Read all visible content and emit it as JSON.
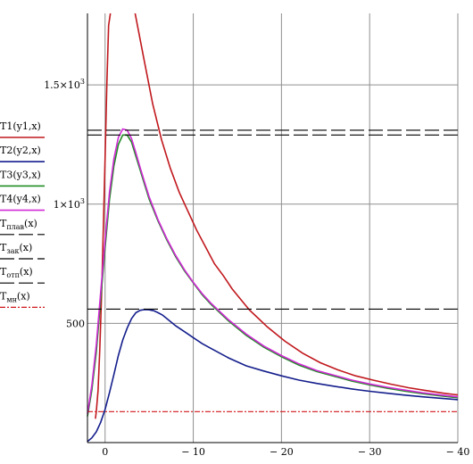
{
  "chart_data": {
    "type": "line",
    "title": "",
    "xlabel": "",
    "ylabel": "",
    "xlim": [
      2,
      -40
    ],
    "ylim": [
      0,
      1800
    ],
    "grid": true,
    "x_ticks": [
      {
        "value": 0,
        "label": "0"
      },
      {
        "value": -10,
        "label": "− 10"
      },
      {
        "value": -20,
        "label": "− 20"
      },
      {
        "value": -30,
        "label": "− 30"
      },
      {
        "value": -40,
        "label": "− 40"
      }
    ],
    "y_ticks": [
      {
        "value": 500,
        "base": "500",
        "exp": ""
      },
      {
        "value": 1000,
        "base": "1×10",
        "exp": "3"
      },
      {
        "value": 1500,
        "base": "1.5×10",
        "exp": "3"
      }
    ],
    "series": [
      {
        "name": "T1(y1,x)",
        "color": "#c0181d",
        "style": "solid",
        "x": [
          1.1,
          1.0,
          0.8,
          0.6,
          0.4,
          0.2,
          0.0,
          -0.2,
          -0.4,
          -0.6,
          -0.8,
          -1.0,
          -1.2,
          -1.4,
          -2.4,
          -3.4,
          -4.4,
          -5.4,
          -6.4,
          -7.4,
          -8.4,
          -9.4,
          -10.4,
          -11.4,
          -12.4,
          -13.4,
          -14.4,
          -15.4,
          -16.4,
          -17.4,
          -18.4,
          -20.4,
          -22.4,
          -24.4,
          -26.4,
          -28.4,
          -30.4,
          -32.4,
          -34.4,
          -36.4,
          -38.4,
          -40.0
        ],
        "values": [
          100,
          130,
          220,
          390,
          620,
          900,
          1200,
          1500,
          1750,
          1800,
          null,
          null,
          null,
          null,
          null,
          1800,
          1610,
          1420,
          1270,
          1150,
          1050,
          970,
          890,
          820,
          750,
          700,
          645,
          600,
          555,
          520,
          485,
          425,
          375,
          335,
          305,
          280,
          262,
          245,
          230,
          218,
          207,
          200
        ]
      },
      {
        "name": "T2(y2,x)",
        "color": "#141e8c",
        "style": "solid",
        "x": [
          2.0,
          1.5,
          1.0,
          0.5,
          0.0,
          -0.5,
          -1.0,
          -1.5,
          -2.0,
          -2.5,
          -3.0,
          -3.5,
          -4.0,
          -4.5,
          -5.0,
          -5.5,
          -6.0,
          -6.5,
          -7.0,
          -8.0,
          -9.0,
          -10.0,
          -11.0,
          -12.0,
          -14.0,
          -16.0,
          -18.0,
          -20.0,
          -22.0,
          -24.0,
          -26.0,
          -28.0,
          -30.0,
          -32.0,
          -34.0,
          -36.0,
          -38.0,
          -40.0
        ],
        "values": [
          5,
          20,
          45,
          85,
          140,
          210,
          285,
          365,
          430,
          480,
          520,
          545,
          555,
          558,
          557,
          553,
          545,
          535,
          520,
          490,
          465,
          440,
          415,
          395,
          355,
          322,
          300,
          280,
          262,
          248,
          236,
          225,
          215,
          207,
          199,
          192,
          186,
          180
        ]
      },
      {
        "name": "T3(y3,x)",
        "color": "#1f8b24",
        "style": "solid",
        "x": [
          2.0,
          1.5,
          1.0,
          0.5,
          0.0,
          -0.5,
          -1.0,
          -1.5,
          -2.0,
          -2.5,
          -3.0,
          -3.5,
          -4.0,
          -4.5,
          -5.0,
          -6.0,
          -7.0,
          -8.0,
          -9.0,
          -10.0,
          -11.0,
          -12.0,
          -14.0,
          -16.0,
          -18.0,
          -20.0,
          -22.0,
          -24.0,
          -26.0,
          -28.0,
          -30.0,
          -32.0,
          -34.0,
          -36.0,
          -38.0,
          -40.0
        ],
        "values": [
          110,
          220,
          380,
          600,
          820,
          1020,
          1160,
          1250,
          1290,
          1290,
          1260,
          1200,
          1140,
          1080,
          1020,
          930,
          850,
          780,
          720,
          670,
          620,
          580,
          510,
          450,
          400,
          360,
          325,
          298,
          278,
          258,
          242,
          228,
          216,
          205,
          196,
          188
        ]
      },
      {
        "name": "T4(y4,x)",
        "color": "#d12ad6",
        "style": "solid",
        "x": [
          2.0,
          1.5,
          1.0,
          0.5,
          0.0,
          -0.5,
          -1.0,
          -1.5,
          -2.0,
          -2.5,
          -3.0,
          -3.5,
          -4.0,
          -4.5,
          -5.0,
          -6.0,
          -7.0,
          -8.0,
          -9.0,
          -10.0,
          -11.0,
          -12.0,
          -14.0,
          -16.0,
          -18.0,
          -20.0,
          -22.0,
          -24.0,
          -26.0,
          -28.0,
          -30.0,
          -32.0,
          -34.0,
          -36.0,
          -38.0,
          -40.0
        ],
        "values": [
          120,
          240,
          410,
          630,
          850,
          1050,
          1190,
          1280,
          1315,
          1310,
          1275,
          1215,
          1150,
          1090,
          1030,
          935,
          855,
          785,
          725,
          672,
          625,
          585,
          515,
          455,
          405,
          365,
          330,
          302,
          282,
          262,
          246,
          232,
          220,
          209,
          200,
          192
        ]
      },
      {
        "name": "T_плав(x)",
        "name_base": "T",
        "name_sub": "плав",
        "name_tail": "(x)",
        "color": "#000000",
        "style": "dashed",
        "x": [
          2,
          -40
        ],
        "values": [
          1310,
          1310
        ]
      },
      {
        "name": "T_зак(x)",
        "name_base": "T",
        "name_sub": "зак",
        "name_tail": "(x)",
        "color": "#000000",
        "style": "dashed",
        "x": [
          2,
          -40
        ],
        "values": [
          1290,
          1290
        ]
      },
      {
        "name": "T_отп(x)",
        "name_base": "T",
        "name_sub": "отп",
        "name_tail": "(x)",
        "color": "#000000",
        "style": "dashed",
        "x": [
          2,
          -40
        ],
        "values": [
          560,
          560
        ]
      },
      {
        "name": "T_мн(x)",
        "name_base": "T",
        "name_sub": "мн",
        "name_tail": "(x)",
        "color": "#d0181d",
        "style": "dashdot",
        "x": [
          2,
          -40
        ],
        "values": [
          130,
          130
        ]
      }
    ]
  }
}
